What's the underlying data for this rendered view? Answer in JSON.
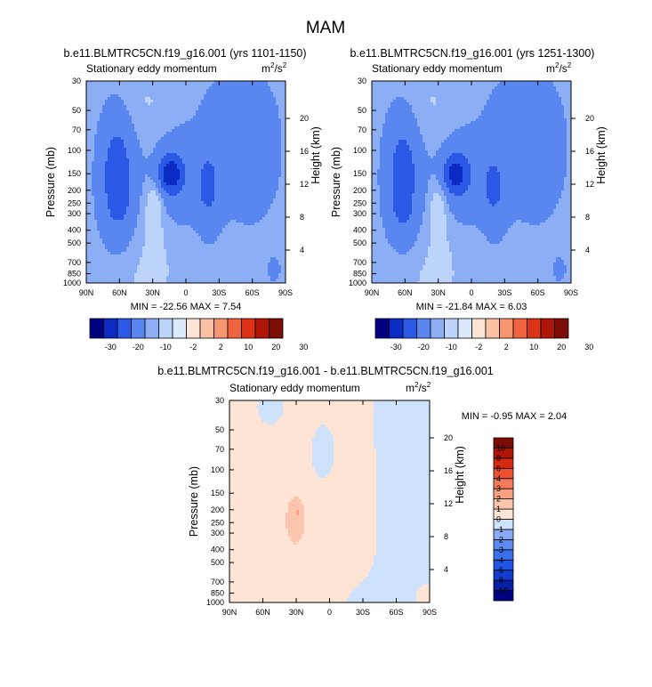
{
  "page": {
    "title": "MAM"
  },
  "colors": {
    "frame": "#000000",
    "background": "#ffffff"
  },
  "chart_data": [
    {
      "type": "heatmap",
      "title": "b.e11.BLMTRC5CN.f19_g16.001 (yrs 1101-1150)",
      "subtitle_left": "Stationary eddy momentum",
      "units": "m²/s²",
      "units_base": "m",
      "units_exp_a": "2",
      "units_mid": "/s",
      "units_exp_b": "2",
      "xlabel": "",
      "ylabel": "Pressure (mb)",
      "ylabel_right": "Height (km)",
      "x_ticks": [
        "90N",
        "60N",
        "30N",
        "0",
        "30S",
        "60S",
        "90S"
      ],
      "x_range": [
        90,
        -90
      ],
      "y_ticks": [
        "30",
        "50",
        "70",
        "100",
        "150",
        "200",
        "250",
        "300",
        "400",
        "500",
        "700",
        "850",
        "1000"
      ],
      "y_tick_values": [
        30,
        50,
        70,
        100,
        150,
        200,
        250,
        300,
        400,
        500,
        700,
        850,
        1000
      ],
      "y_scale": "log",
      "y_range": [
        30,
        1000
      ],
      "height_ticks": [
        "20",
        "16",
        "12",
        "8",
        "4"
      ],
      "height_tick_values": [
        20,
        16,
        12,
        8,
        4
      ],
      "stats_text": "MIN = -22.56  MAX =  7.54",
      "min": -22.56,
      "max": 7.54,
      "colorbar_orientation": "horizontal",
      "colorbar": {
        "levels": [
          -30,
          -20,
          -10,
          -2,
          2,
          10,
          20,
          30
        ],
        "labels": [
          "-30",
          "-20",
          "-10",
          "-2",
          "2",
          "10",
          "20",
          "30"
        ],
        "colors": [
          "#000080",
          "#0b2cc4",
          "#2b59e6",
          "#5a87ef",
          "#8caef5",
          "#bcd4fa",
          "#dce9fc",
          "#fde4d4",
          "#fbc1a4",
          "#f7956f",
          "#f06340",
          "#dd3419",
          "#b01607",
          "#7c0c04"
        ]
      },
      "features": [
        {
          "lat": 62,
          "p": 160,
          "lat_w": 11,
          "logp_w": 0.33,
          "amp": -16.0
        },
        {
          "lat": 60,
          "p": 260,
          "lat_w": 4,
          "logp_w": 0.05,
          "amp": -6.0
        },
        {
          "lat": 14,
          "p": 150,
          "lat_w": 7,
          "logp_w": 0.09,
          "amp": -22.0
        },
        {
          "lat": 12,
          "p": 160,
          "lat_w": 15,
          "logp_w": 0.22,
          "amp": -8.0
        },
        {
          "lat": -20,
          "p": 180,
          "lat_w": 5,
          "logp_w": 0.12,
          "amp": -12.0
        },
        {
          "lat": -20,
          "p": 230,
          "lat_w": 9,
          "logp_w": 0.25,
          "amp": -4.0
        },
        {
          "lat": 28,
          "p": 260,
          "lat_w": 5,
          "logp_w": 0.12,
          "amp": 7.5
        },
        {
          "lat": 28,
          "p": 400,
          "lat_w": 10,
          "logp_w": 0.35,
          "amp": 2.8
        },
        {
          "lat": 50,
          "p": 950,
          "lat_w": 30,
          "logp_w": 0.2,
          "amp": 2.2
        },
        {
          "lat": -80,
          "p": 800,
          "lat_w": 5,
          "logp_w": 0.08,
          "amp": -3.0
        },
        {
          "lat": 35,
          "p": 45,
          "lat_w": 18,
          "logp_w": 0.2,
          "amp": 2.4
        },
        {
          "lat": -60,
          "p": 110,
          "lat_w": 22,
          "logp_w": 0.45,
          "amp": -3.2
        },
        {
          "lat": -35,
          "p": 70,
          "lat_w": 30,
          "logp_w": 0.4,
          "amp": -2.5
        }
      ]
    },
    {
      "type": "heatmap",
      "title": "b.e11.BLMTRC5CN.f19_g16.001 (yrs 1251-1300)",
      "subtitle_left": "Stationary eddy momentum",
      "units": "m²/s²",
      "units_base": "m",
      "units_exp_a": "2",
      "units_mid": "/s",
      "units_exp_b": "2",
      "xlabel": "",
      "ylabel": "Pressure (mb)",
      "ylabel_right": "Height (km)",
      "x_ticks": [
        "90N",
        "60N",
        "30N",
        "0",
        "30S",
        "60S",
        "90S"
      ],
      "x_range": [
        90,
        -90
      ],
      "y_ticks": [
        "30",
        "50",
        "70",
        "100",
        "150",
        "200",
        "250",
        "300",
        "400",
        "500",
        "700",
        "850",
        "1000"
      ],
      "y_tick_values": [
        30,
        50,
        70,
        100,
        150,
        200,
        250,
        300,
        400,
        500,
        700,
        850,
        1000
      ],
      "y_scale": "log",
      "y_range": [
        30,
        1000
      ],
      "height_ticks": [
        "20",
        "16",
        "12",
        "8",
        "4"
      ],
      "height_tick_values": [
        20,
        16,
        12,
        8,
        4
      ],
      "stats_text": "MIN = -21.84  MAX =  6.03",
      "min": -21.84,
      "max": 6.03,
      "colorbar_orientation": "horizontal",
      "colorbar": {
        "levels": [
          -30,
          -20,
          -10,
          -2,
          2,
          10,
          20,
          30
        ],
        "labels": [
          "-30",
          "-20",
          "-10",
          "-2",
          "2",
          "10",
          "20",
          "30"
        ],
        "colors": [
          "#000080",
          "#0b2cc4",
          "#2b59e6",
          "#5a87ef",
          "#8caef5",
          "#bcd4fa",
          "#dce9fc",
          "#fde4d4",
          "#fbc1a4",
          "#f7956f",
          "#f06340",
          "#dd3419",
          "#b01607",
          "#7c0c04"
        ]
      },
      "features": [
        {
          "lat": 62,
          "p": 160,
          "lat_w": 11,
          "logp_w": 0.33,
          "amp": -15.0
        },
        {
          "lat": 62,
          "p": 270,
          "lat_w": 4,
          "logp_w": 0.06,
          "amp": -8.0
        },
        {
          "lat": 14,
          "p": 150,
          "lat_w": 7,
          "logp_w": 0.09,
          "amp": -20.0
        },
        {
          "lat": 12,
          "p": 160,
          "lat_w": 15,
          "logp_w": 0.22,
          "amp": -8.0
        },
        {
          "lat": -20,
          "p": 185,
          "lat_w": 5,
          "logp_w": 0.12,
          "amp": -10.0
        },
        {
          "lat": -20,
          "p": 230,
          "lat_w": 9,
          "logp_w": 0.25,
          "amp": -4.0
        },
        {
          "lat": 30,
          "p": 270,
          "lat_w": 5,
          "logp_w": 0.13,
          "amp": 6.0
        },
        {
          "lat": 28,
          "p": 420,
          "lat_w": 10,
          "logp_w": 0.35,
          "amp": 2.6
        },
        {
          "lat": 50,
          "p": 950,
          "lat_w": 30,
          "logp_w": 0.2,
          "amp": 2.2
        },
        {
          "lat": -80,
          "p": 800,
          "lat_w": 5,
          "logp_w": 0.08,
          "amp": -3.0
        },
        {
          "lat": 35,
          "p": 45,
          "lat_w": 18,
          "logp_w": 0.2,
          "amp": 2.4
        },
        {
          "lat": -60,
          "p": 110,
          "lat_w": 22,
          "logp_w": 0.45,
          "amp": -3.2
        },
        {
          "lat": -35,
          "p": 70,
          "lat_w": 30,
          "logp_w": 0.4,
          "amp": -2.5
        }
      ]
    },
    {
      "type": "heatmap",
      "title": "b.e11.BLMTRC5CN.f19_g16.001 - b.e11.BLMTRC5CN.f19_g16.001",
      "subtitle_left": "Stationary eddy momentum",
      "units": "m²/s²",
      "units_base": "m",
      "units_exp_a": "2",
      "units_mid": "/s",
      "units_exp_b": "2",
      "xlabel": "",
      "ylabel": "Pressure (mb)",
      "ylabel_right": "Height (km)",
      "x_ticks": [
        "90N",
        "60N",
        "30N",
        "0",
        "30S",
        "60S",
        "90S"
      ],
      "x_range": [
        90,
        -90
      ],
      "y_ticks": [
        "30",
        "50",
        "70",
        "100",
        "150",
        "200",
        "250",
        "300",
        "400",
        "500",
        "700",
        "850",
        "1000"
      ],
      "y_tick_values": [
        30,
        50,
        70,
        100,
        150,
        200,
        250,
        300,
        400,
        500,
        700,
        850,
        1000
      ],
      "y_scale": "log",
      "y_range": [
        30,
        1000
      ],
      "height_ticks": [
        "20",
        "16",
        "12",
        "8",
        "4"
      ],
      "height_tick_values": [
        20,
        16,
        12,
        8,
        4
      ],
      "stats_text": "MIN = -0.95  MAX =  2.04",
      "min": -0.95,
      "max": 2.04,
      "colorbar_orientation": "vertical",
      "colorbar": {
        "levels": [
          -10,
          -8,
          -6,
          -4,
          -3,
          -2,
          -1,
          0,
          1,
          2,
          3,
          4,
          6,
          8,
          10
        ],
        "labels": [
          "-10",
          "-8",
          "-6",
          "-4",
          "-3",
          "-2",
          "-1",
          "0",
          "1",
          "2",
          "3",
          "4",
          "6",
          "8",
          "10"
        ],
        "colors": [
          "#000080",
          "#0a1fa8",
          "#133ccc",
          "#2055e4",
          "#3a70ee",
          "#5a8af2",
          "#8aacf5",
          "#cfe2fb",
          "#fde4d4",
          "#fbc6ad",
          "#f8a283",
          "#f47b5a",
          "#ec5030",
          "#d62b10",
          "#b01607",
          "#7c0c04"
        ]
      },
      "features": [
        {
          "lat": 70,
          "p": 300,
          "lat_w": 30,
          "logp_w": 0.8,
          "amp": 0.5
        },
        {
          "lat": 30,
          "p": 240,
          "lat_w": 8,
          "logp_w": 0.17,
          "amp": 1.3
        },
        {
          "lat": 28,
          "p": 205,
          "lat_w": 2,
          "logp_w": 0.03,
          "amp": 0.8
        },
        {
          "lat": -15,
          "p": 320,
          "lat_w": 20,
          "logp_w": 0.55,
          "amp": 0.35
        },
        {
          "lat": -70,
          "p": 80,
          "lat_w": 14,
          "logp_w": 0.35,
          "amp": -0.6
        },
        {
          "lat": -65,
          "p": 500,
          "lat_w": 14,
          "logp_w": 0.35,
          "amp": -0.55
        },
        {
          "lat": 55,
          "p": 35,
          "lat_w": 10,
          "logp_w": 0.12,
          "amp": -0.4
        },
        {
          "lat": 5,
          "p": 80,
          "lat_w": 8,
          "logp_w": 0.15,
          "amp": -0.35
        },
        {
          "lat": -30,
          "p": 950,
          "lat_w": 22,
          "logp_w": 0.15,
          "amp": -0.3
        },
        {
          "lat": -80,
          "p": 900,
          "lat_w": 8,
          "logp_w": 0.1,
          "amp": 0.35
        }
      ]
    }
  ]
}
